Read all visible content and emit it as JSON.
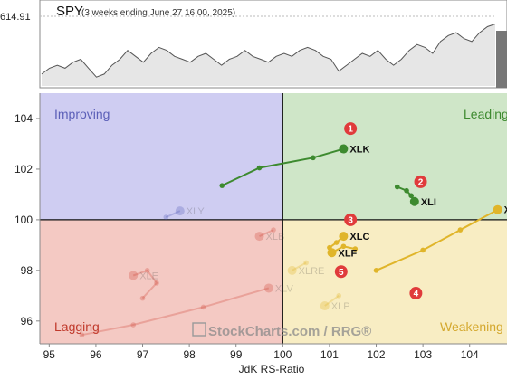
{
  "header": {
    "symbol": "SPY",
    "subtitle": "(3 weeks ending June 27 16:00, 2025)",
    "last_price": "614.91"
  },
  "watermark": "StockCharts.com / RRG®",
  "colors": {
    "improving": "#cfcdf2",
    "leading": "#cfe6c8",
    "lagging": "#f4c9c3",
    "weakening": "#f8edc3",
    "leading_text": "#3d8a2f",
    "improving_text": "#5b5fb8",
    "lagging_text": "#c0392b",
    "weakening_text": "#d4a82e",
    "badge": "#e03b3b"
  },
  "quadrants": {
    "improving": "Improving",
    "leading": "Leading",
    "lagging": "Lagging",
    "weakening": "Weakening"
  },
  "price_chart": {
    "series": [
      598,
      600,
      601,
      600,
      602,
      603,
      600,
      597,
      598,
      601,
      603,
      606,
      604,
      602,
      605,
      607,
      606,
      604,
      603,
      602,
      604,
      605,
      603,
      601,
      603,
      604,
      606,
      604,
      603,
      602,
      604,
      605,
      604,
      606,
      607,
      606,
      604,
      603,
      599,
      601,
      603,
      605,
      604,
      606,
      603,
      601,
      603,
      606,
      608,
      607,
      605,
      609,
      611,
      612,
      610,
      609,
      612,
      614,
      614.91
    ]
  },
  "chart_data": {
    "type": "scatter",
    "xlabel": "JdK RS-Ratio",
    "ylabel": "",
    "xlim": [
      94.8,
      104.8
    ],
    "ylim": [
      95.1,
      105.0
    ],
    "xticks": [
      "95",
      "96",
      "97",
      "98",
      "99",
      "100",
      "101",
      "102",
      "103",
      "104"
    ],
    "yticks": [
      "96",
      "98",
      "100",
      "102",
      "104"
    ],
    "series": [
      {
        "name": "XLK",
        "color": "#3d8a2f",
        "faded": false,
        "points": [
          [
            98.7,
            101.35
          ],
          [
            99.5,
            102.05
          ],
          [
            100.65,
            102.45
          ],
          [
            101.3,
            102.8
          ]
        ]
      },
      {
        "name": "XLI",
        "color": "#3d8a2f",
        "faded": false,
        "points": [
          [
            102.45,
            101.3
          ],
          [
            102.65,
            101.15
          ],
          [
            102.75,
            100.95
          ],
          [
            102.82,
            100.72
          ]
        ]
      },
      {
        "name": "XLC",
        "color": "#e0b52a",
        "faded": false,
        "points": [
          [
            101.0,
            98.9
          ],
          [
            101.15,
            99.1
          ],
          [
            101.3,
            99.35
          ]
        ]
      },
      {
        "name": "XLF",
        "color": "#e0b52a",
        "faded": false,
        "points": [
          [
            101.55,
            98.85
          ],
          [
            101.3,
            98.95
          ],
          [
            101.05,
            98.7
          ]
        ]
      },
      {
        "name": "XLU",
        "color": "#e0b52a",
        "faded": false,
        "points": [
          [
            102.0,
            98.0
          ],
          [
            103.0,
            98.8
          ],
          [
            103.8,
            99.6
          ],
          [
            104.6,
            100.4
          ]
        ]
      },
      {
        "name": "XLY",
        "color": "#5b5fb8",
        "faded": true,
        "points": [
          [
            97.5,
            100.1
          ],
          [
            97.8,
            100.35
          ]
        ]
      },
      {
        "name": "XLB",
        "color": "#d04a3a",
        "faded": true,
        "points": [
          [
            99.8,
            99.6
          ],
          [
            99.5,
            99.35
          ]
        ]
      },
      {
        "name": "XLE",
        "color": "#d04a3a",
        "faded": true,
        "points": [
          [
            97.0,
            96.9
          ],
          [
            97.3,
            97.5
          ],
          [
            97.1,
            98.0
          ],
          [
            96.8,
            97.8
          ]
        ]
      },
      {
        "name": "XLRE",
        "color": "#e0b52a",
        "faded": true,
        "points": [
          [
            100.5,
            98.3
          ],
          [
            100.2,
            98.0
          ]
        ]
      },
      {
        "name": "XLP",
        "color": "#e0b52a",
        "faded": true,
        "points": [
          [
            101.2,
            97.0
          ],
          [
            100.9,
            96.6
          ]
        ]
      },
      {
        "name": "XLV",
        "color": "#d04a3a",
        "faded": true,
        "points": [
          [
            95.7,
            95.45
          ],
          [
            96.8,
            95.85
          ],
          [
            98.3,
            96.55
          ],
          [
            99.7,
            97.3
          ]
        ]
      }
    ],
    "annotations": [
      {
        "label": "1",
        "x": 101.45,
        "y": 103.6
      },
      {
        "label": "2",
        "x": 102.95,
        "y": 101.5
      },
      {
        "label": "3",
        "x": 101.45,
        "y": 100.0
      },
      {
        "label": "4",
        "x": 102.85,
        "y": 97.1
      },
      {
        "label": "5",
        "x": 101.25,
        "y": 97.95
      }
    ]
  }
}
